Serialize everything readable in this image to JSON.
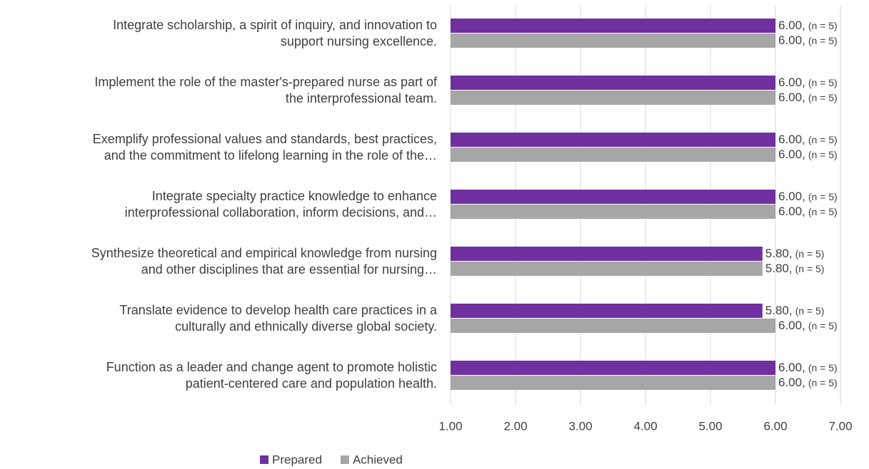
{
  "chart_data": {
    "type": "bar",
    "orientation": "horizontal",
    "categories": [
      [
        "Integrate scholarship, a spirit of inquiry, and innovation to",
        "support nursing excellence."
      ],
      [
        "Implement the role of the master's-prepared nurse as part of",
        "the interprofessional team."
      ],
      [
        "Exemplify professional values and standards, best practices,",
        "and the commitment to lifelong learning in the role of the…"
      ],
      [
        "Integrate specialty practice knowledge to enhance",
        "interprofessional collaboration, inform decisions, and…"
      ],
      [
        "Synthesize theoretical and empirical knowledge from nursing",
        "and other disciplines that are essential for nursing…"
      ],
      [
        "Translate evidence to develop health care practices in a",
        "culturally and ethnically diverse global society."
      ],
      [
        "Function as a leader and change agent to promote holistic",
        "patient-centered care and population health."
      ]
    ],
    "series": [
      {
        "name": "Prepared",
        "color": "#7030a0",
        "values": [
          6,
          6,
          6,
          6,
          5.8,
          5.8,
          6
        ],
        "value_labels": [
          "6.00,",
          "6.00,",
          "6.00,",
          "6.00,",
          "5.80,",
          "5.80,",
          "6.00,"
        ],
        "n_labels": [
          "(n = 5)",
          "(n = 5)",
          "(n = 5)",
          "(n = 5)",
          "(n = 5)",
          "(n = 5)",
          "(n = 5)"
        ]
      },
      {
        "name": "Achieved",
        "color": "#a6a6a6",
        "values": [
          6,
          6,
          6,
          6,
          5.8,
          6,
          6
        ],
        "value_labels": [
          "6.00,",
          "6.00,",
          "6.00,",
          "6.00,",
          "5.80,",
          "6.00,",
          "6.00,"
        ],
        "n_labels": [
          "(n = 5)",
          "(n = 5)",
          "(n = 5)",
          "(n = 5)",
          "(n = 5)",
          "(n = 5)",
          "(n = 5)"
        ]
      }
    ],
    "xlim": [
      1,
      7
    ],
    "xticks": [
      {
        "value": 1,
        "label": "1.00"
      },
      {
        "value": 2,
        "label": "2.00"
      },
      {
        "value": 3,
        "label": "3.00"
      },
      {
        "value": 4,
        "label": "4.00"
      },
      {
        "value": 5,
        "label": "5.00"
      },
      {
        "value": 6,
        "label": "6.00"
      },
      {
        "value": 7,
        "label": "7.00"
      }
    ],
    "grid": true,
    "legend": "bottom"
  }
}
